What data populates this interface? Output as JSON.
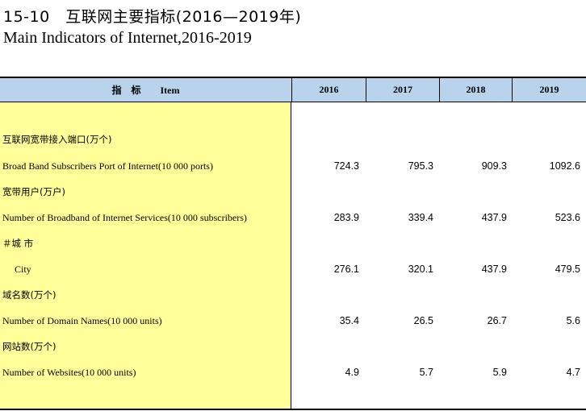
{
  "title": {
    "cn": "15-10　互联网主要指标(2016—2019年)",
    "en": "Main Indicators of Internet,2016-2019"
  },
  "table": {
    "header": {
      "item_label": "指　标　　Item",
      "years": [
        "2016",
        "2017",
        "2018",
        "2019"
      ]
    },
    "rows": [
      {
        "label": "互联网宽带接入端口(万个)",
        "lang": "cn"
      },
      {
        "label": "Broad Band Subscribers Port of Internet(10 000 ports)",
        "lang": "en",
        "values": [
          "724.3",
          "795.3",
          "909.3",
          "1092.6"
        ]
      },
      {
        "label": "宽带用户(万户)",
        "lang": "cn"
      },
      {
        "label": "Number of Broadband of Internet Services(10 000 subscribers)",
        "lang": "en",
        "values": [
          "283.9",
          "339.4",
          "437.9",
          "523.6"
        ]
      },
      {
        "label": "＃城 市",
        "lang": "cn"
      },
      {
        "label": "City",
        "lang": "en",
        "indent": true,
        "values": [
          "276.1",
          "320.1",
          "437.9",
          "479.5"
        ]
      },
      {
        "label": "域名数(万个)",
        "lang": "cn"
      },
      {
        "label": "Number of Domain Names(10 000 units)",
        "lang": "en",
        "values": [
          "35.4",
          "26.5",
          "26.7",
          "5.6"
        ]
      },
      {
        "label": "网站数(万个)",
        "lang": "cn"
      },
      {
        "label": "Number of Websites(10 000 units)",
        "lang": "en",
        "values": [
          "4.9",
          "5.7",
          "5.9",
          "4.7"
        ]
      }
    ]
  },
  "colors": {
    "header_bg": "#b9d3ec",
    "item_column_bg": "#ffff99"
  }
}
